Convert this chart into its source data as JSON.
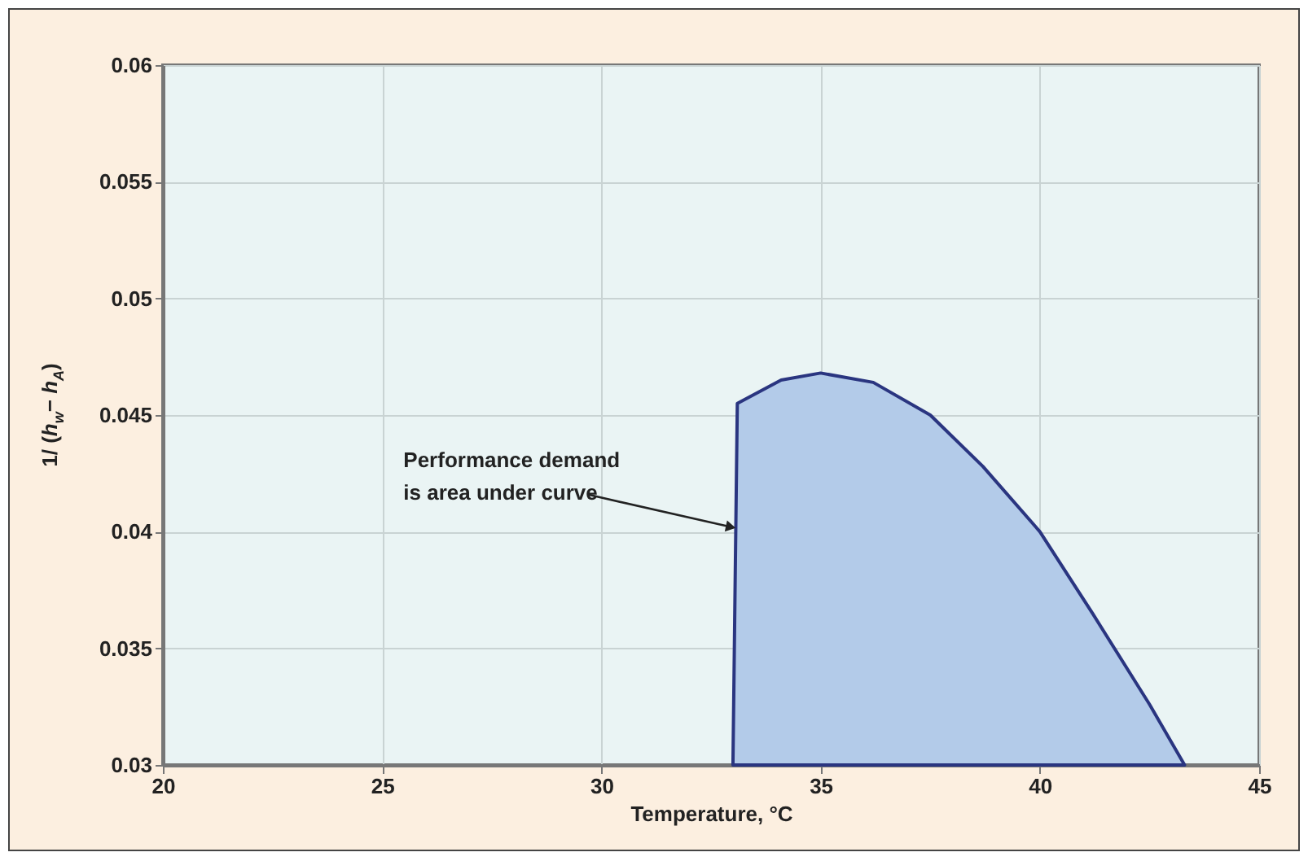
{
  "chart_data": {
    "type": "area",
    "xlabel": "Temperature, °C",
    "ylabel": "1/ (h$_{w}$− h$_{A}$)",
    "x": [
      33,
      33.1,
      34.1,
      35,
      36.2,
      37.5,
      38.7,
      40,
      41.2,
      42.5,
      43.3
    ],
    "series": [
      {
        "color": "#b3cbe9",
        "values": [
          0.03,
          0.0455,
          0.0465,
          0.0468,
          0.0464,
          0.045,
          0.0428,
          0.04,
          0.0365,
          0.0326,
          0.03
        ]
      }
    ],
    "xlim": [
      20,
      45
    ],
    "xticks": [
      20,
      25,
      30,
      35,
      40,
      45
    ],
    "ylim": [
      0.03,
      0.06
    ],
    "yticks": [
      0.03,
      0.035,
      0.04,
      0.045,
      0.05,
      0.055,
      0.06
    ],
    "grid": true,
    "annotations": [
      {
        "text": "Performance demand\nis area under curve",
        "x": 33.1,
        "y": 0.0402
      }
    ]
  }
}
